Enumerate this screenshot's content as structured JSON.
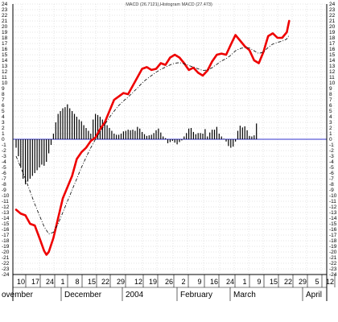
{
  "chart_data": {
    "type": "line",
    "title": "MACD (26.7121),Histogram MACD (27.473)",
    "ylim": [
      -24,
      24
    ],
    "y_ticks": [
      24,
      23,
      22,
      21,
      20,
      19,
      18,
      17,
      16,
      15,
      14,
      13,
      12,
      11,
      10,
      9,
      8,
      7,
      6,
      5,
      4,
      3,
      2,
      1,
      0,
      -1,
      -2,
      -3,
      -4,
      -5,
      -6,
      -7,
      -8,
      -9,
      -10,
      -11,
      -12,
      -13,
      -14,
      -15,
      -16,
      -17,
      -18,
      -19,
      -20,
      -21,
      -22,
      -23,
      -24
    ],
    "x_day_labels": [
      "10",
      "17",
      "24",
      "1",
      "8",
      "15",
      "22",
      "29",
      "12",
      "19",
      "26",
      "2",
      "9",
      "16",
      "24",
      "1",
      "9",
      "15",
      "22",
      "29",
      "5",
      "12"
    ],
    "x_month_labels": [
      "ovember",
      "December",
      "2004",
      "February",
      "March",
      "April"
    ],
    "grid": true,
    "colors": {
      "macd": "#ee0000",
      "signal": "#000000",
      "histogram": "#000000",
      "zero_line": "#3333cc",
      "grid": "#c8c8c8"
    },
    "x_index_range": [
      0,
      110
    ],
    "series": [
      {
        "style": "thick-red",
        "points": [
          [
            0,
            -12.5
          ],
          [
            2,
            -13.2
          ],
          [
            4,
            -13.5
          ],
          [
            6,
            -15
          ],
          [
            8,
            -15.3
          ],
          [
            10,
            -17.5
          ],
          [
            12,
            -19.8
          ],
          [
            13,
            -20.5
          ],
          [
            14,
            -20
          ],
          [
            16,
            -17.5
          ],
          [
            18,
            -14
          ],
          [
            20,
            -10.5
          ],
          [
            22,
            -8.5
          ],
          [
            24,
            -6.5
          ],
          [
            26,
            -3.5
          ],
          [
            28,
            -2.3
          ],
          [
            30,
            -1.5
          ],
          [
            32,
            -0.3
          ],
          [
            34,
            0.3
          ],
          [
            36,
            1.8
          ],
          [
            38,
            3
          ],
          [
            40,
            5
          ],
          [
            42,
            7
          ],
          [
            44,
            7.6
          ],
          [
            46,
            8.2
          ],
          [
            48,
            8
          ],
          [
            50,
            9.5
          ],
          [
            52,
            11
          ],
          [
            54,
            12.5
          ],
          [
            56,
            12.8
          ],
          [
            58,
            12.3
          ],
          [
            60,
            12.5
          ],
          [
            62,
            13.5
          ],
          [
            64,
            13.2
          ],
          [
            66,
            14.5
          ],
          [
            68,
            15
          ],
          [
            70,
            14.5
          ],
          [
            72,
            13.5
          ],
          [
            74,
            12.3
          ],
          [
            76,
            12.7
          ],
          [
            78,
            11.8
          ],
          [
            80,
            11.3
          ],
          [
            82,
            12.2
          ],
          [
            84,
            13.8
          ],
          [
            86,
            15
          ],
          [
            88,
            15.2
          ],
          [
            90,
            15
          ],
          [
            92,
            16.8
          ],
          [
            94,
            18.5
          ],
          [
            96,
            17.5
          ],
          [
            98,
            16.5
          ],
          [
            100,
            15.8
          ],
          [
            102,
            14
          ],
          [
            104,
            13.5
          ],
          [
            106,
            15.5
          ],
          [
            108,
            18.3
          ],
          [
            110,
            18.8
          ],
          [
            112,
            18
          ],
          [
            114,
            18
          ],
          [
            116,
            19
          ],
          [
            117,
            21
          ]
        ]
      },
      {
        "style": "dashed-black",
        "points": [
          [
            0,
            -3
          ],
          [
            4,
            -7
          ],
          [
            8,
            -11.5
          ],
          [
            12,
            -15.5
          ],
          [
            14,
            -16.8
          ],
          [
            16,
            -16.5
          ],
          [
            18,
            -15
          ],
          [
            20,
            -13
          ],
          [
            22,
            -11
          ],
          [
            24,
            -9
          ],
          [
            26,
            -7
          ],
          [
            28,
            -5
          ],
          [
            30,
            -3.2
          ],
          [
            32,
            -1.5
          ],
          [
            34,
            0
          ],
          [
            36,
            1.3
          ],
          [
            38,
            2.6
          ],
          [
            40,
            3.9
          ],
          [
            42,
            5
          ],
          [
            44,
            6
          ],
          [
            46,
            6.8
          ],
          [
            48,
            7.5
          ],
          [
            50,
            8.3
          ],
          [
            52,
            9.1
          ],
          [
            54,
            10
          ],
          [
            56,
            10.7
          ],
          [
            58,
            11.3
          ],
          [
            60,
            11.9
          ],
          [
            62,
            12.4
          ],
          [
            64,
            12.8
          ],
          [
            66,
            13.2
          ],
          [
            68,
            13.5
          ],
          [
            70,
            13.6
          ],
          [
            72,
            13.4
          ],
          [
            74,
            13.1
          ],
          [
            76,
            12.8
          ],
          [
            78,
            12.5
          ],
          [
            80,
            12.2
          ],
          [
            82,
            12.3
          ],
          [
            84,
            12.7
          ],
          [
            86,
            13.3
          ],
          [
            88,
            13.9
          ],
          [
            90,
            14.3
          ],
          [
            92,
            14.9
          ],
          [
            94,
            15.7
          ],
          [
            96,
            16.1
          ],
          [
            98,
            16.3
          ],
          [
            100,
            16.2
          ],
          [
            102,
            15.7
          ],
          [
            104,
            15.2
          ],
          [
            106,
            15.5
          ],
          [
            108,
            16.3
          ],
          [
            110,
            16.9
          ],
          [
            112,
            17.2
          ],
          [
            114,
            17.4
          ],
          [
            116,
            17.8
          ],
          [
            117,
            18.5
          ]
        ]
      }
    ],
    "histogram": [
      -1.5,
      -3,
      -5,
      -7,
      -8,
      -7.5,
      -7,
      -6.5,
      -6,
      -5.5,
      -5,
      -4.5,
      -4.7,
      -4,
      -2.5,
      -1,
      1,
      3,
      4.5,
      5,
      5.5,
      5.7,
      6.2,
      5.5,
      5,
      4.5,
      4,
      3.5,
      3.2,
      2.5,
      2,
      1.5,
      1,
      3.5,
      4.5,
      4.3,
      4,
      3.5,
      3,
      2.5,
      2,
      1.5,
      1,
      0.8,
      0.8,
      1,
      1.4,
      1.5,
      1.7,
      1.6,
      1.7,
      1.5,
      2.2,
      1.9,
      1.3,
      0.9,
      0.6,
      0.7,
      0.8,
      1.1,
      1.6,
      1.9,
      1.2,
      0.5,
      0.2,
      -0.7,
      -0.5,
      -0.3,
      -0.6,
      -0.9,
      -0.5,
      -0.2,
      0.5,
      1.1,
      1.9,
      2,
      1.3,
      0.9,
      1.1,
      1.1,
      1,
      1.8,
      0.5,
      1.2,
      1.7,
      1.7,
      2.2,
      1,
      0.5,
      0.1,
      -0.4,
      -1.2,
      -1.5,
      -1.3,
      -0.4,
      1.5,
      2.4,
      2.1,
      2.3,
      1.6,
      0.6,
      0.5,
      0.7,
      2.8
    ]
  }
}
